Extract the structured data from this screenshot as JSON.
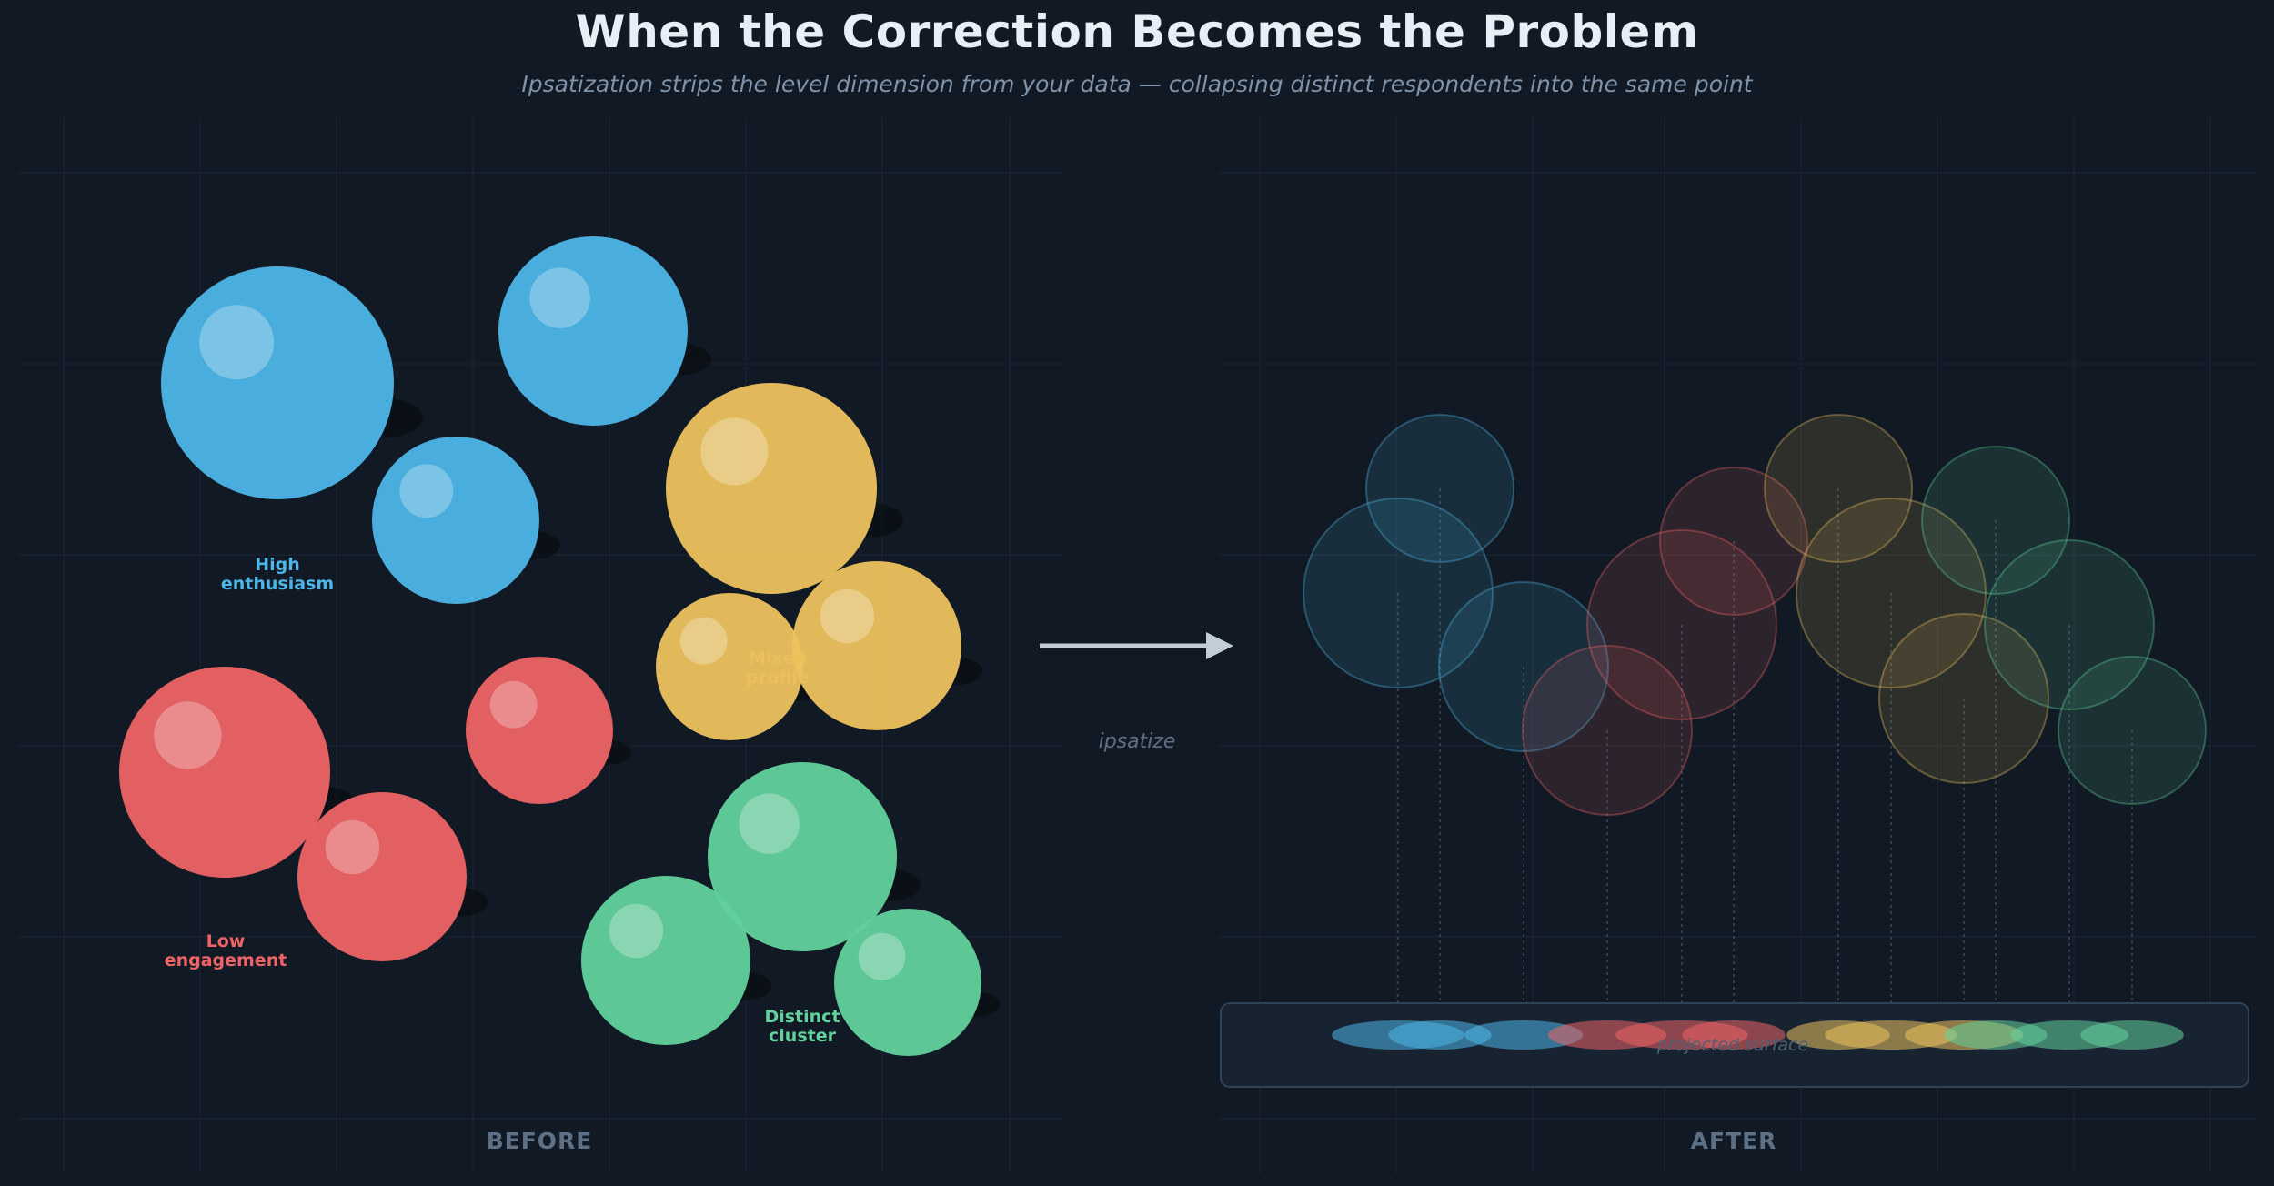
{
  "header": {
    "title": "When the Correction Becomes the Problem",
    "subtitle": "Ipsatization strips the level dimension from your data — collapsing distinct respondents into the same point"
  },
  "panels": {
    "before_label": "BEFORE",
    "after_label": "AFTER"
  },
  "arrow": {
    "caption": "ipsatize"
  },
  "after_panel": {
    "surface_label": "projected surface"
  },
  "clusters": [
    {
      "id": "high",
      "label": "High\nenthusiasm",
      "color": "#4db6e8"
    },
    {
      "id": "mixed",
      "label": "Mixed\nprofile",
      "color": "#edc25e"
    },
    {
      "id": "low",
      "label": "Low\nengagement",
      "color": "#ee6466"
    },
    {
      "id": "distinct",
      "label": "Distinct\ncluster",
      "color": "#62d19d"
    }
  ],
  "colors": {
    "background": "#111a24",
    "high": "#4db6e8",
    "mixed": "#edc25e",
    "low": "#ee6466",
    "distinct": "#62d19d"
  }
}
